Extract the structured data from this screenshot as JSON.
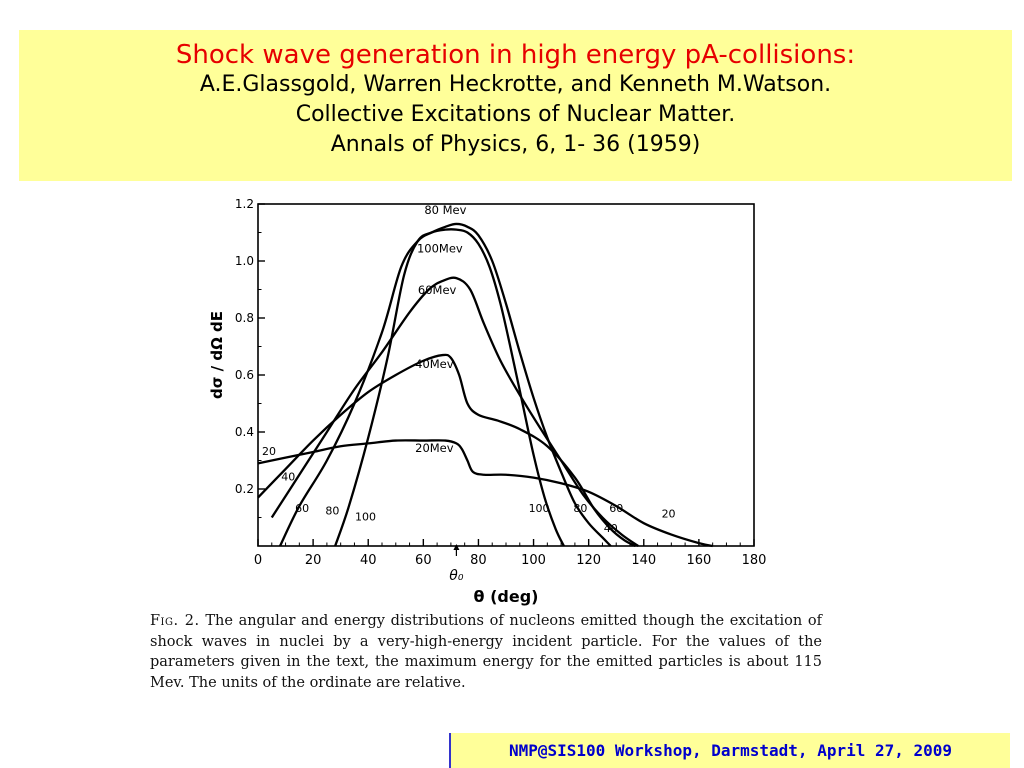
{
  "header": {
    "title": "Shock wave generation in high energy pA-collisions:",
    "authors": "A.E.Glassgold, Warren Heckrotte, and Kenneth M.Watson.",
    "paper_title": "Collective Excitations of Nuclear Matter.",
    "journal": "Annals of Physics, 6, 1- 36 (1959)"
  },
  "caption": {
    "label": "Fig. 2.",
    "text": "The angular and energy distributions of nucleons emitted though the excitation of shock waves in nuclei by a very-high-energy incident particle. For the values of the parameters given in the text, the maximum energy for the emitted particles is about 115 Mev. The units of the ordinate are relative."
  },
  "footer": {
    "text": "NMP@SIS100 Workshop, Darmstadt, April 27, 2009"
  },
  "chart_data": {
    "type": "line",
    "xlabel": "θ (deg)",
    "ylabel": "dσ / dΩ dE",
    "xlim": [
      0,
      180
    ],
    "ylim": [
      0,
      1.2
    ],
    "x_ticks": [
      "0",
      "20",
      "40",
      "60",
      "80",
      "100",
      "120",
      "140",
      "160",
      "180"
    ],
    "y_ticks": [
      "0.2",
      "0.4",
      "0.6",
      "0.8",
      "1.0",
      "1.2"
    ],
    "marker": {
      "x": 72,
      "label": "θ₀"
    },
    "series": [
      {
        "name": "80 Mev",
        "x": [
          8,
          15,
          25,
          35,
          45,
          52,
          58,
          63,
          68,
          72,
          76,
          80,
          85,
          90,
          95,
          100,
          105,
          110,
          115,
          120,
          125,
          128
        ],
        "y": [
          0,
          0.14,
          0.3,
          0.5,
          0.75,
          0.98,
          1.07,
          1.1,
          1.12,
          1.13,
          1.12,
          1.09,
          1.0,
          0.85,
          0.68,
          0.52,
          0.38,
          0.26,
          0.15,
          0.08,
          0.03,
          0
        ],
        "end_labels": [
          "80",
          "80"
        ]
      },
      {
        "name": "100Mev",
        "x": [
          28,
          33,
          40,
          47,
          53,
          58,
          63,
          68,
          72,
          76,
          80,
          84,
          88,
          92,
          96,
          100,
          104,
          108,
          111
        ],
        "y": [
          0,
          0.14,
          0.38,
          0.66,
          0.95,
          1.07,
          1.1,
          1.11,
          1.11,
          1.1,
          1.06,
          0.98,
          0.85,
          0.68,
          0.5,
          0.32,
          0.17,
          0.06,
          0
        ],
        "end_labels": [
          "100",
          "100"
        ]
      },
      {
        "name": "60Mev",
        "x": [
          5,
          15,
          25,
          35,
          45,
          55,
          62,
          67,
          72,
          77,
          82,
          88,
          95,
          102,
          110,
          118,
          125,
          132,
          138
        ],
        "y": [
          0.1,
          0.25,
          0.4,
          0.55,
          0.68,
          0.82,
          0.9,
          0.93,
          0.94,
          0.9,
          0.78,
          0.65,
          0.53,
          0.42,
          0.3,
          0.18,
          0.1,
          0.04,
          0
        ],
        "end_labels": [
          "60",
          "60"
        ]
      },
      {
        "name": "40Mev",
        "x": [
          0,
          10,
          20,
          30,
          40,
          50,
          60,
          67,
          70,
          73,
          76,
          80,
          87,
          95,
          105,
          115,
          122,
          128,
          133,
          137
        ],
        "y": [
          0.17,
          0.27,
          0.37,
          0.46,
          0.54,
          0.6,
          0.65,
          0.67,
          0.66,
          0.6,
          0.5,
          0.46,
          0.44,
          0.41,
          0.35,
          0.24,
          0.13,
          0.06,
          0.02,
          0
        ],
        "end_labels": [
          "40",
          "40"
        ]
      },
      {
        "name": "20Mev",
        "x": [
          0,
          10,
          20,
          30,
          40,
          50,
          60,
          68,
          72,
          74,
          76,
          78,
          82,
          90,
          100,
          110,
          120,
          130,
          140,
          150,
          160,
          165
        ],
        "y": [
          0.29,
          0.31,
          0.33,
          0.35,
          0.36,
          0.37,
          0.37,
          0.37,
          0.36,
          0.34,
          0.3,
          0.26,
          0.25,
          0.25,
          0.24,
          0.22,
          0.19,
          0.14,
          0.08,
          0.04,
          0.01,
          0
        ],
        "end_labels": [
          "20",
          "20"
        ]
      }
    ]
  }
}
